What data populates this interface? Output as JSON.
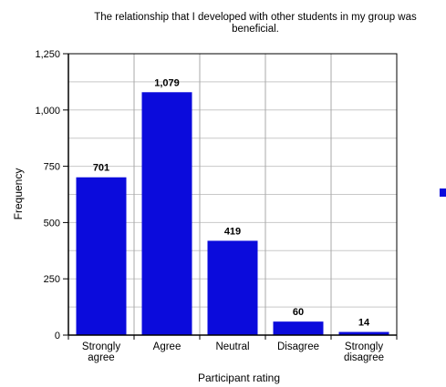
{
  "chart_data": {
    "type": "bar",
    "title_lines": [
      "The relationship that I developed with other students in my group was",
      "beneficial."
    ],
    "xlabel": "Participant rating",
    "ylabel": "Frequency",
    "categories": [
      [
        "Strongly",
        "agree"
      ],
      [
        "Agree"
      ],
      [
        "Neutral"
      ],
      [
        "Disagree"
      ],
      [
        "Strongly",
        "disagree"
      ]
    ],
    "values": [
      701,
      1079,
      419,
      60,
      14
    ],
    "value_labels": [
      "701",
      "1,079",
      "419",
      "60",
      "14"
    ],
    "ylim": [
      0,
      1250
    ],
    "yticks": [
      0,
      250,
      500,
      750,
      1000,
      1250
    ],
    "ytick_labels": [
      "0",
      "250",
      "500",
      "750",
      "1,000",
      "1,250"
    ],
    "grid": true,
    "bar_color": "#0b0bdc",
    "legend": {
      "placement": "right",
      "entries": [
        ""
      ]
    }
  }
}
